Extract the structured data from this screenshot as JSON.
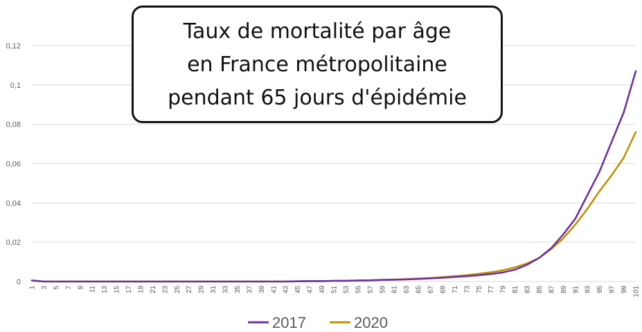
{
  "title_lines": [
    "Taux de mortalité par âge",
    "en France métropolitaine",
    "pendant 65 jours d'épidémie"
  ],
  "colors": {
    "series_2017": "#7030A0",
    "series_2020": "#BF9000",
    "grid": "#d9d9d9",
    "axis_text": "#595959"
  },
  "chart_data": {
    "type": "line",
    "title": "Taux de mortalité par âge en France métropolitaine pendant 65 jours d'épidémie",
    "xlabel": "",
    "ylabel": "",
    "ylim": [
      0,
      0.12
    ],
    "yticks": [
      "0",
      "0,02",
      "0,04",
      "0,06",
      "0,08",
      "0,1",
      "0,12"
    ],
    "grid": true,
    "legend_position": "bottom",
    "x": [
      1,
      3,
      5,
      7,
      9,
      11,
      13,
      15,
      17,
      19,
      21,
      23,
      25,
      27,
      29,
      31,
      33,
      35,
      37,
      39,
      41,
      43,
      45,
      47,
      49,
      51,
      53,
      55,
      57,
      59,
      61,
      63,
      65,
      67,
      69,
      71,
      73,
      75,
      77,
      79,
      81,
      83,
      85,
      87,
      89,
      91,
      93,
      95,
      97,
      99,
      101
    ],
    "xtick_labels": [
      "1",
      "3",
      "5",
      "7",
      "9",
      "11",
      "13",
      "15",
      "17",
      "19",
      "21",
      "23",
      "25",
      "27",
      "29",
      "31",
      "33",
      "35",
      "37",
      "39",
      "41",
      "43",
      "45",
      "47",
      "49",
      "51",
      "53",
      "55",
      "57",
      "59",
      "61",
      "63",
      "65",
      "67",
      "69",
      "71",
      "73",
      "75",
      "77",
      "79",
      "81",
      "83",
      "85",
      "87",
      "89",
      "91",
      "93",
      "95",
      "97",
      "99",
      "101"
    ],
    "series": [
      {
        "name": "2017",
        "values": [
          0.0005,
          0,
          0,
          0,
          0,
          0,
          0,
          0,
          0,
          0,
          0,
          0,
          0,
          0,
          0,
          0,
          0,
          0,
          0,
          0,
          0,
          0,
          0.0001,
          0.0002,
          0.0002,
          0.0003,
          0.0004,
          0.0005,
          0.0006,
          0.0008,
          0.0009,
          0.0011,
          0.0013,
          0.0016,
          0.0019,
          0.0023,
          0.0027,
          0.0032,
          0.0038,
          0.0046,
          0.006,
          0.0085,
          0.012,
          0.017,
          0.024,
          0.032,
          0.044,
          0.056,
          0.071,
          0.086,
          0.107
        ]
      },
      {
        "name": "2020",
        "values": [
          0.0005,
          0,
          0,
          0,
          0,
          0,
          0,
          0,
          0,
          0,
          0,
          0,
          0,
          0,
          0,
          0,
          0,
          0,
          0,
          0,
          0,
          0,
          0.0001,
          0.0002,
          0.0002,
          0.0003,
          0.0004,
          0.0005,
          0.0006,
          0.0008,
          0.001,
          0.0012,
          0.0015,
          0.0018,
          0.0022,
          0.0027,
          0.0032,
          0.0039,
          0.0047,
          0.0057,
          0.0072,
          0.0092,
          0.012,
          0.0165,
          0.022,
          0.029,
          0.037,
          0.046,
          0.054,
          0.063,
          0.076
        ]
      }
    ]
  }
}
